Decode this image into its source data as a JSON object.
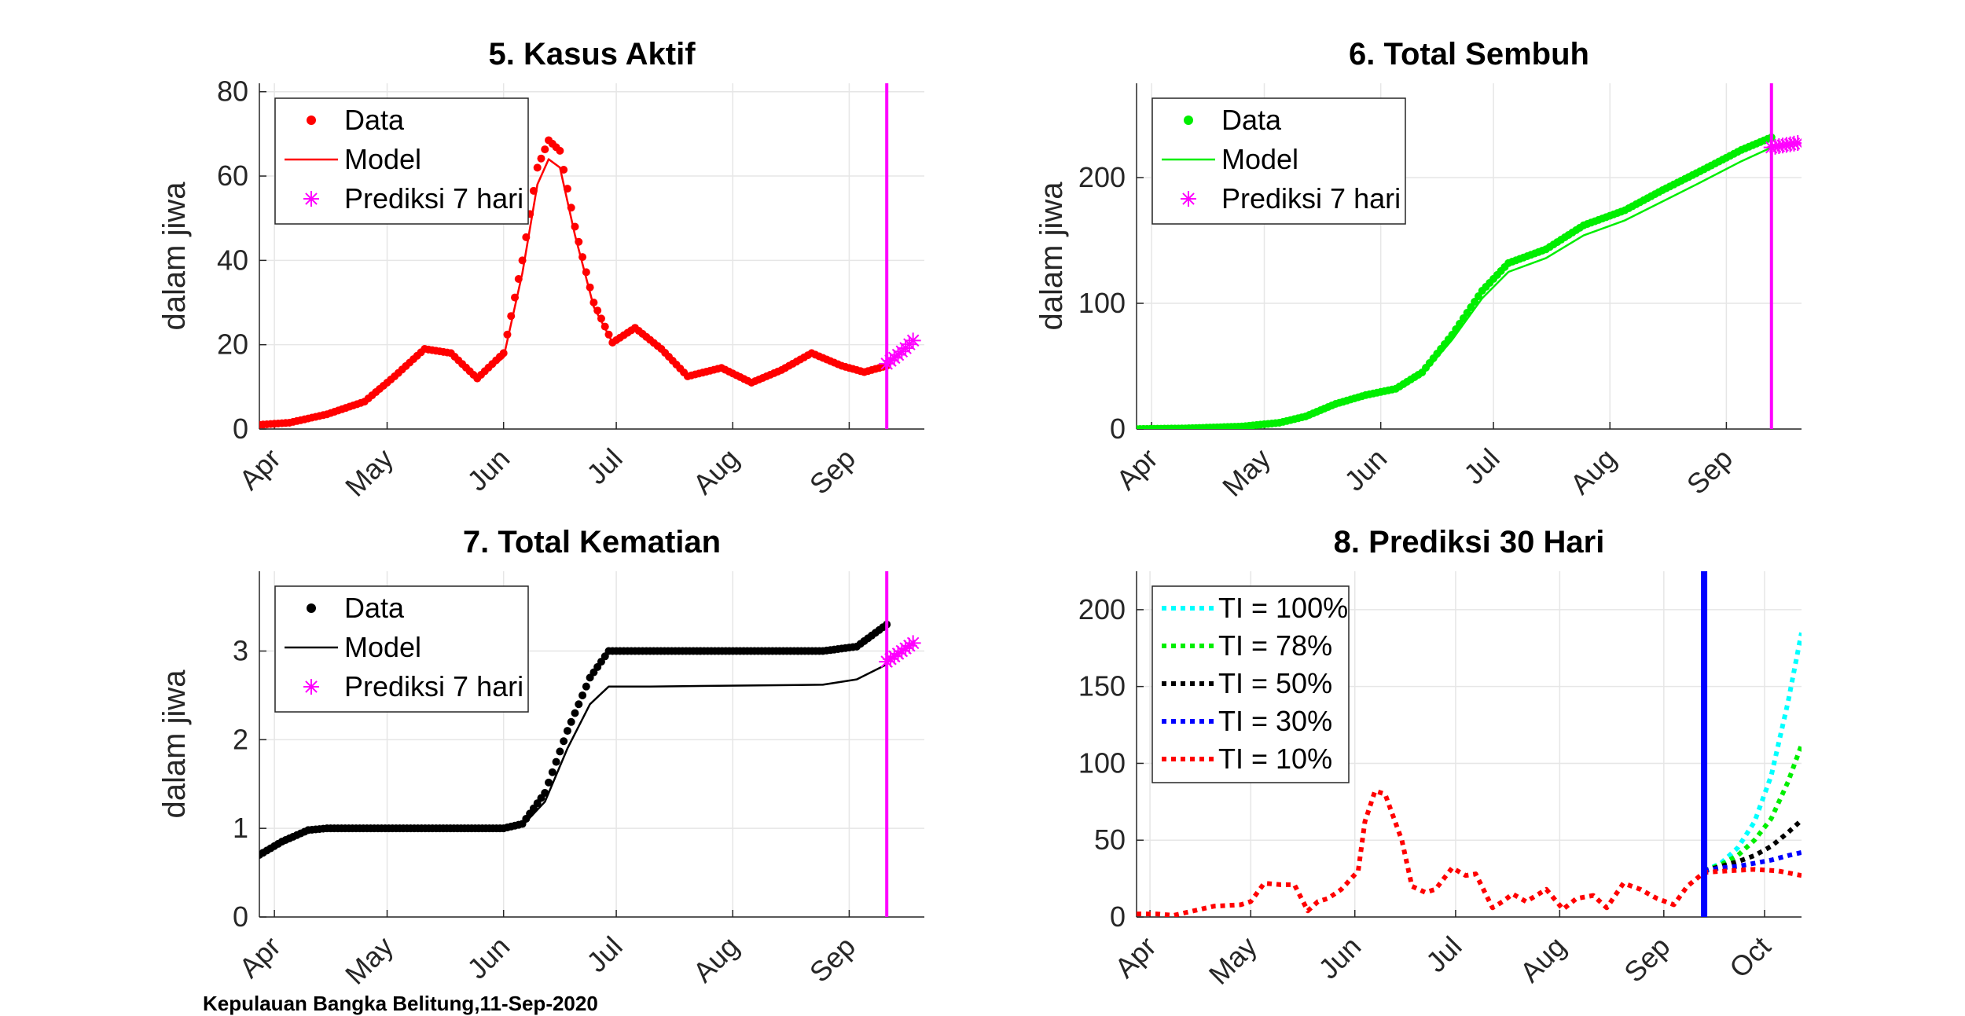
{
  "footer": "Kepulauan Bangka Belitung,11-Sep-2020",
  "colors": {
    "red": "#ff0000",
    "green": "#00ee00",
    "black": "#000000",
    "magenta": "#ff00ff",
    "cyan": "#00ffff",
    "blue": "#0000ff"
  },
  "chart_data": [
    {
      "type": "line",
      "title": "5. Kasus Aktif",
      "xlabel": "",
      "ylabel": "dalam jiwa",
      "xlim": [
        "2020-03-28",
        "2020-09-21"
      ],
      "ylim": [
        0,
        82
      ],
      "xticks": [
        "Apr",
        "May",
        "Jun",
        "Jul",
        "Aug",
        "Sep"
      ],
      "yticks": [
        0,
        20,
        40,
        60,
        80
      ],
      "grid": true,
      "legend": {
        "placement": "top-left",
        "entries": [
          "Data",
          "Model",
          "Prediksi 7 hari"
        ]
      },
      "vline_date": "2020-09-11",
      "series": [
        {
          "name": "Data",
          "style": "dots",
          "color": "red",
          "x": [
            "2020-03-28",
            "2020-04-05",
            "2020-04-15",
            "2020-04-25",
            "2020-05-03",
            "2020-05-11",
            "2020-05-18",
            "2020-05-25",
            "2020-06-01",
            "2020-06-06",
            "2020-06-10",
            "2020-06-13",
            "2020-06-16",
            "2020-06-20",
            "2020-06-25",
            "2020-06-30",
            "2020-07-06",
            "2020-07-13",
            "2020-07-20",
            "2020-07-29",
            "2020-08-06",
            "2020-08-14",
            "2020-08-22",
            "2020-08-30",
            "2020-09-05",
            "2020-09-11"
          ],
          "y": [
            1,
            1.5,
            3.5,
            6.5,
            12.5,
            19,
            18,
            12,
            18,
            40,
            62,
            68.5,
            66,
            48,
            30,
            20.5,
            24,
            19,
            12.5,
            14.5,
            11,
            14,
            18,
            15,
            13.5,
            15
          ]
        },
        {
          "name": "Model",
          "style": "line",
          "color": "red",
          "x": [
            "2020-03-28",
            "2020-04-05",
            "2020-04-15",
            "2020-04-25",
            "2020-05-03",
            "2020-05-11",
            "2020-05-18",
            "2020-05-25",
            "2020-06-01",
            "2020-06-06",
            "2020-06-10",
            "2020-06-13",
            "2020-06-16",
            "2020-06-20",
            "2020-06-25",
            "2020-06-30",
            "2020-07-06",
            "2020-07-13",
            "2020-07-20",
            "2020-07-29",
            "2020-08-06",
            "2020-08-14",
            "2020-08-22",
            "2020-08-30",
            "2020-09-05",
            "2020-09-11"
          ],
          "y": [
            1,
            1.4,
            3.3,
            6.2,
            12,
            18.5,
            17.6,
            12,
            17,
            37,
            58,
            64,
            62,
            46,
            29,
            20.5,
            23.5,
            18.8,
            12.5,
            14.5,
            11,
            14,
            17.8,
            15,
            13.5,
            15
          ]
        },
        {
          "name": "Prediksi 7 hari",
          "style": "star",
          "color": "magenta",
          "x": [
            "2020-09-11",
            "2020-09-12",
            "2020-09-13",
            "2020-09-14",
            "2020-09-15",
            "2020-09-16",
            "2020-09-17",
            "2020-09-18"
          ],
          "y": [
            15.5,
            16.2,
            16.9,
            17.6,
            18.4,
            19.2,
            20.1,
            21
          ]
        }
      ]
    },
    {
      "type": "line",
      "title": "6. Total Sembuh",
      "xlabel": "",
      "ylabel": "dalam jiwa",
      "xlim": [
        "2020-03-28",
        "2020-09-21"
      ],
      "ylim": [
        0,
        275
      ],
      "xticks": [
        "Apr",
        "May",
        "Jun",
        "Jul",
        "Aug",
        "Sep"
      ],
      "yticks": [
        0,
        100,
        200
      ],
      "grid": true,
      "legend": {
        "placement": "top-left",
        "entries": [
          "Data",
          "Model",
          "Prediksi 7 hari"
        ]
      },
      "vline_date": "2020-09-13",
      "series": [
        {
          "name": "Data",
          "style": "dots",
          "color": "green",
          "x": [
            "2020-03-28",
            "2020-04-10",
            "2020-04-25",
            "2020-05-05",
            "2020-05-12",
            "2020-05-20",
            "2020-05-28",
            "2020-06-05",
            "2020-06-12",
            "2020-06-20",
            "2020-06-28",
            "2020-07-05",
            "2020-07-15",
            "2020-07-25",
            "2020-08-05",
            "2020-08-15",
            "2020-08-25",
            "2020-09-05",
            "2020-09-13"
          ],
          "y": [
            0,
            0.5,
            2,
            5,
            10,
            20,
            27,
            32,
            45,
            75,
            110,
            132,
            143,
            162,
            174,
            190,
            205,
            222,
            232
          ]
        },
        {
          "name": "Model",
          "style": "line",
          "color": "green",
          "x": [
            "2020-03-28",
            "2020-04-10",
            "2020-04-25",
            "2020-05-05",
            "2020-05-12",
            "2020-05-20",
            "2020-05-28",
            "2020-06-05",
            "2020-06-12",
            "2020-06-20",
            "2020-06-28",
            "2020-07-05",
            "2020-07-15",
            "2020-07-25",
            "2020-08-05",
            "2020-08-15",
            "2020-08-25",
            "2020-09-05",
            "2020-09-13"
          ],
          "y": [
            0,
            0.5,
            2,
            5,
            10,
            20,
            27,
            31,
            43,
            71,
            104,
            125,
            136,
            154,
            166,
            181,
            196,
            213,
            224
          ]
        },
        {
          "name": "Prediksi 7 hari",
          "style": "star",
          "color": "magenta",
          "x": [
            "2020-09-13",
            "2020-09-14",
            "2020-09-15",
            "2020-09-16",
            "2020-09-17",
            "2020-09-18",
            "2020-09-19",
            "2020-09-20"
          ],
          "y": [
            224,
            224.5,
            225,
            225.5,
            226,
            226.5,
            227,
            227.5
          ]
        }
      ]
    },
    {
      "type": "line",
      "title": "7. Total Kematian",
      "xlabel": "",
      "ylabel": "dalam jiwa",
      "xlim": [
        "2020-03-28",
        "2020-09-21"
      ],
      "ylim": [
        0,
        3.9
      ],
      "xticks": [
        "Apr",
        "May",
        "Jun",
        "Jul",
        "Aug",
        "Sep"
      ],
      "yticks": [
        0,
        1,
        2,
        3
      ],
      "grid": true,
      "legend": {
        "placement": "top-left",
        "entries": [
          "Data",
          "Model",
          "Prediksi 7 hari"
        ]
      },
      "vline_date": "2020-09-11",
      "series": [
        {
          "name": "Data",
          "style": "dots",
          "color": "black",
          "x": [
            "2020-03-28",
            "2020-04-03",
            "2020-04-10",
            "2020-04-15",
            "2020-05-15",
            "2020-06-01",
            "2020-06-06",
            "2020-06-12",
            "2020-06-18",
            "2020-06-24",
            "2020-06-29",
            "2020-07-10",
            "2020-08-25",
            "2020-09-03",
            "2020-09-11"
          ],
          "y": [
            0.7,
            0.85,
            0.98,
            1,
            1,
            1,
            1.05,
            1.4,
            2.1,
            2.7,
            3,
            3,
            3,
            3.05,
            3.3
          ]
        },
        {
          "name": "Model",
          "style": "line",
          "color": "black",
          "x": [
            "2020-03-28",
            "2020-04-03",
            "2020-04-10",
            "2020-04-15",
            "2020-05-15",
            "2020-06-01",
            "2020-06-06",
            "2020-06-12",
            "2020-06-18",
            "2020-06-24",
            "2020-06-29",
            "2020-07-10",
            "2020-08-25",
            "2020-09-03",
            "2020-09-11"
          ],
          "y": [
            0.7,
            0.85,
            0.98,
            1,
            1,
            1,
            1.03,
            1.3,
            1.9,
            2.4,
            2.6,
            2.6,
            2.62,
            2.68,
            2.85
          ]
        },
        {
          "name": "Prediksi 7 hari",
          "style": "star",
          "color": "magenta",
          "x": [
            "2020-09-11",
            "2020-09-12",
            "2020-09-13",
            "2020-09-14",
            "2020-09-15",
            "2020-09-16",
            "2020-09-17",
            "2020-09-18"
          ],
          "y": [
            2.88,
            2.91,
            2.94,
            2.97,
            3.0,
            3.03,
            3.06,
            3.09
          ]
        }
      ]
    },
    {
      "type": "line",
      "title": "8. Prediksi 30 Hari",
      "xlabel": "",
      "ylabel": "",
      "xlim": [
        "2020-03-28",
        "2020-10-12"
      ],
      "ylim": [
        0,
        225
      ],
      "xticks": [
        "Apr",
        "May",
        "Jun",
        "Jul",
        "Aug",
        "Sep",
        "Oct"
      ],
      "yticks": [
        0,
        50,
        100,
        150,
        200
      ],
      "grid": true,
      "legend": {
        "placement": "top-left",
        "entries": [
          "TI = 100%",
          "TI = 78%",
          "TI = 50%",
          "TI = 30%",
          "TI = 10%"
        ]
      },
      "vline_date": "2020-09-13",
      "series": [
        {
          "name": "TI = 100%",
          "style": "dotted",
          "color": "cyan",
          "x": [
            "2020-09-13",
            "2020-09-18",
            "2020-09-23",
            "2020-09-28",
            "2020-10-03",
            "2020-10-08",
            "2020-10-12"
          ],
          "y": [
            30,
            35,
            45,
            62,
            92,
            140,
            185
          ]
        },
        {
          "name": "TI = 78%",
          "style": "dotted",
          "color": "green",
          "x": [
            "2020-09-13",
            "2020-09-18",
            "2020-09-23",
            "2020-09-28",
            "2020-10-03",
            "2020-10-08",
            "2020-10-12"
          ],
          "y": [
            30,
            34,
            40,
            50,
            64,
            88,
            112
          ]
        },
        {
          "name": "TI = 50%",
          "style": "dotted",
          "color": "black",
          "x": [
            "2020-09-13",
            "2020-09-18",
            "2020-09-23",
            "2020-09-28",
            "2020-10-03",
            "2020-10-08",
            "2020-10-12"
          ],
          "y": [
            30,
            33,
            36,
            40,
            46,
            55,
            63
          ]
        },
        {
          "name": "TI = 30%",
          "style": "dotted",
          "color": "blue",
          "x": [
            "2020-09-13",
            "2020-09-18",
            "2020-09-23",
            "2020-09-28",
            "2020-10-03",
            "2020-10-08",
            "2020-10-12"
          ],
          "y": [
            30,
            32,
            33,
            35,
            37,
            40,
            42
          ]
        },
        {
          "name": "TI = 10%",
          "style": "dotted",
          "color": "red",
          "x": [
            "2020-03-28",
            "2020-04-03",
            "2020-04-08",
            "2020-04-12",
            "2020-04-20",
            "2020-04-28",
            "2020-05-01",
            "2020-05-05",
            "2020-05-10",
            "2020-05-14",
            "2020-05-18",
            "2020-05-21",
            "2020-05-24",
            "2020-05-28",
            "2020-06-02",
            "2020-06-04",
            "2020-06-07",
            "2020-06-10",
            "2020-06-15",
            "2020-06-18",
            "2020-06-22",
            "2020-06-25",
            "2020-06-30",
            "2020-07-04",
            "2020-07-07",
            "2020-07-12",
            "2020-07-15",
            "2020-07-18",
            "2020-07-22",
            "2020-07-28",
            "2020-08-02",
            "2020-08-06",
            "2020-08-11",
            "2020-08-15",
            "2020-08-20",
            "2020-08-25",
            "2020-08-30",
            "2020-09-04",
            "2020-09-08",
            "2020-09-13",
            "2020-09-20",
            "2020-09-28",
            "2020-10-05",
            "2020-10-12"
          ],
          "y": [
            2,
            2,
            1,
            3,
            7,
            8,
            10,
            22,
            21,
            21,
            4,
            10,
            12,
            18,
            30,
            62,
            82,
            80,
            50,
            20,
            16,
            18,
            32,
            27,
            28,
            6,
            10,
            15,
            10,
            18,
            5,
            12,
            14,
            6,
            22,
            18,
            12,
            8,
            20,
            29,
            30,
            31,
            30,
            27
          ]
        }
      ]
    }
  ]
}
